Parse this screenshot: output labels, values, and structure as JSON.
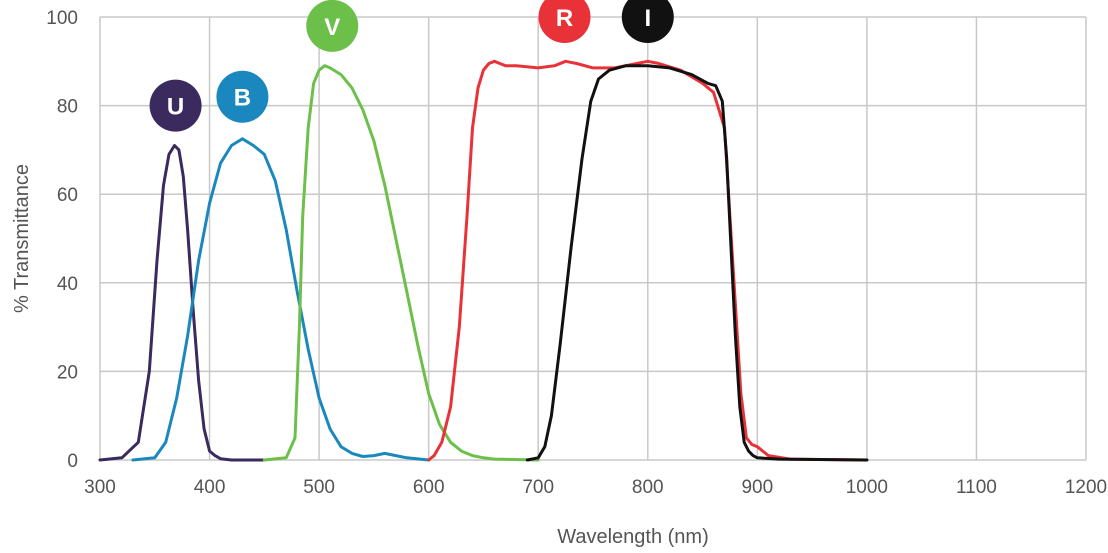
{
  "chart_data": {
    "type": "line",
    "title": "",
    "xlabel": "Wavelength (nm)",
    "ylabel": "% Transmittance",
    "xlim": [
      300,
      1200
    ],
    "ylim": [
      0,
      100
    ],
    "xticks": [
      300,
      400,
      500,
      600,
      700,
      800,
      900,
      1000,
      1100,
      1200
    ],
    "yticks": [
      0,
      20,
      40,
      60,
      80,
      100
    ],
    "grid": true,
    "legend": "labeled badges above each curve peak",
    "series": [
      {
        "name": "U",
        "color": "#3a2a5e",
        "badge_at": [
          369,
          80
        ],
        "x": [
          300,
          320,
          335,
          345,
          352,
          358,
          363,
          368,
          372,
          376,
          380,
          385,
          390,
          395,
          400,
          405,
          410,
          420,
          450
        ],
        "y": [
          0,
          0.5,
          4,
          20,
          45,
          62,
          69,
          71,
          70,
          64,
          52,
          34,
          18,
          7,
          2,
          1,
          0.3,
          0,
          0
        ]
      },
      {
        "name": "B",
        "color": "#1a88bf",
        "badge_at": [
          430,
          82
        ],
        "x": [
          330,
          350,
          360,
          370,
          380,
          390,
          400,
          410,
          420,
          430,
          440,
          450,
          460,
          470,
          480,
          490,
          500,
          510,
          520,
          530,
          540,
          550,
          560,
          570,
          580,
          600
        ],
        "y": [
          0,
          0.5,
          4,
          14,
          28,
          45,
          58,
          67,
          71,
          72.5,
          71,
          69,
          63,
          52,
          38,
          25,
          14,
          7,
          3,
          1.5,
          0.8,
          1,
          1.5,
          1,
          0.5,
          0
        ]
      },
      {
        "name": "V",
        "color": "#6cc04a",
        "badge_at": [
          512,
          98
        ],
        "x": [
          450,
          470,
          478,
          482,
          485,
          490,
          495,
          500,
          505,
          510,
          520,
          530,
          540,
          550,
          560,
          570,
          580,
          590,
          600,
          610,
          620,
          630,
          640,
          650,
          660,
          700
        ],
        "y": [
          0,
          0.5,
          5,
          30,
          55,
          75,
          85,
          88,
          89,
          88.5,
          87,
          84,
          79,
          72,
          62,
          50,
          38,
          26,
          15,
          8,
          4,
          2,
          1,
          0.5,
          0.2,
          0
        ]
      },
      {
        "name": "R",
        "color": "#e83238",
        "badge_at": [
          724,
          100
        ],
        "x": [
          600,
          605,
          612,
          620,
          628,
          635,
          640,
          645,
          650,
          655,
          660,
          665,
          670,
          680,
          700,
          715,
          725,
          735,
          750,
          770,
          790,
          800,
          810,
          830,
          850,
          860,
          870,
          875,
          880,
          885,
          890,
          895,
          900,
          910,
          930,
          1000
        ],
        "y": [
          0,
          1,
          4,
          12,
          30,
          55,
          75,
          84,
          88,
          89.5,
          90,
          89.5,
          89,
          89,
          88.5,
          89,
          90,
          89.5,
          88.5,
          88.5,
          89.5,
          90,
          89.5,
          88,
          85,
          83,
          75,
          55,
          35,
          15,
          5,
          3.5,
          3,
          1,
          0.2,
          0
        ]
      },
      {
        "name": "I",
        "color": "#111111",
        "badge_at": [
          800,
          100
        ],
        "x": [
          690,
          700,
          706,
          712,
          720,
          730,
          740,
          748,
          755,
          765,
          780,
          800,
          820,
          840,
          855,
          862,
          868,
          872,
          876,
          880,
          884,
          888,
          892,
          896,
          900,
          920,
          1000
        ],
        "y": [
          0,
          0.5,
          3,
          10,
          26,
          48,
          68,
          81,
          86,
          88,
          89,
          89,
          88.5,
          87,
          85,
          84.5,
          81,
          68,
          48,
          28,
          12,
          4,
          2,
          1,
          0.5,
          0.2,
          0
        ]
      }
    ]
  }
}
